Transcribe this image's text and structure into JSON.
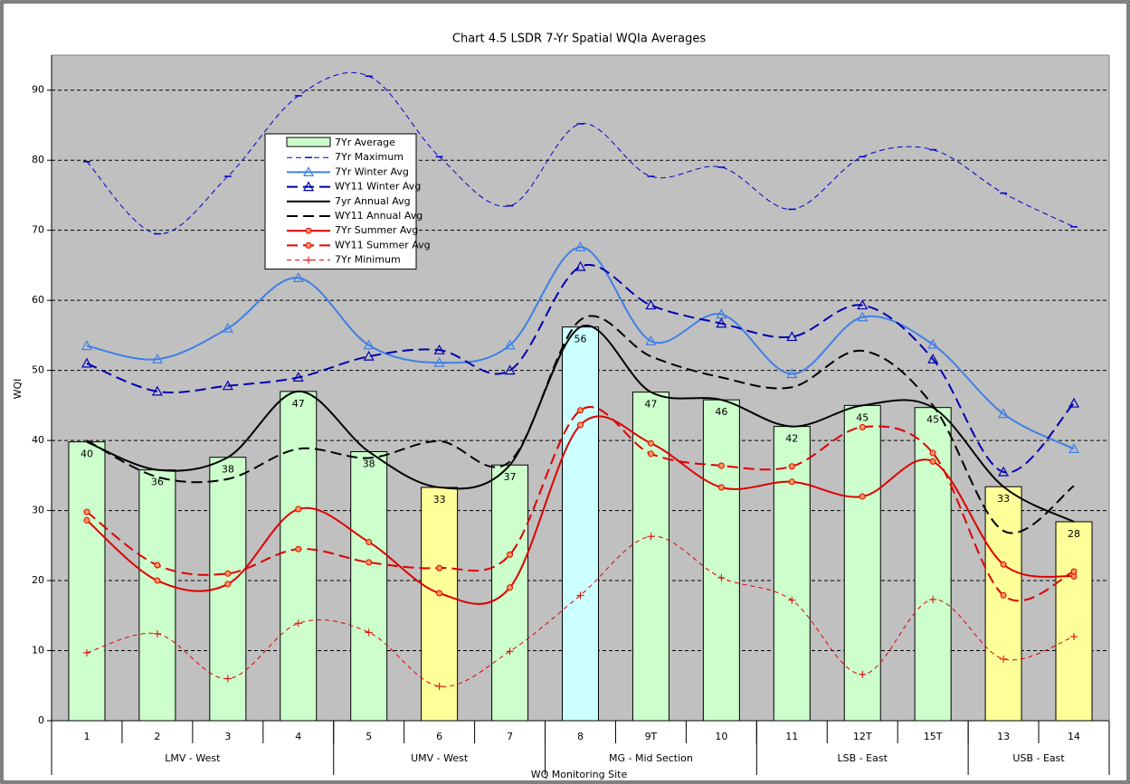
{
  "chart_data": {
    "type": "bar",
    "title": "Chart 4.5 LSDR 7-Yr Spatial WQIa Averages",
    "y_label": "WQI",
    "x_label": "WQ Monitoring Site",
    "categories": [
      "1",
      "2",
      "3",
      "4",
      "5",
      "6",
      "7",
      "8",
      "9T",
      "10",
      "11",
      "12T",
      "15T",
      "13",
      "14"
    ],
    "groups": [
      {
        "label": "LMV - West",
        "span": 4
      },
      {
        "label": "UMV - West",
        "span": 3
      },
      {
        "label": "MG - Mid Section",
        "span": 3
      },
      {
        "label": "LSB - East",
        "span": 3
      },
      {
        "label": "USB - East",
        "span": 2
      }
    ],
    "bars": {
      "name": "7Yr Average",
      "values": [
        39.8,
        35.8,
        37.6,
        47,
        38.4,
        33.3,
        36.5,
        56.2,
        46.9,
        45.8,
        42,
        45,
        44.7,
        33.4,
        28.4
      ],
      "value_labels": [
        "40",
        "36",
        "38",
        "47",
        "38",
        "33",
        "37",
        "56",
        "47",
        "46",
        "42",
        "45",
        "45",
        "33",
        "28"
      ],
      "colors": [
        "#ccffcc",
        "#ccffcc",
        "#ccffcc",
        "#ccffcc",
        "#ccffcc",
        "#ffff99",
        "#ccffcc",
        "#ccffff",
        "#ccffcc",
        "#ccffcc",
        "#ccffcc",
        "#ccffcc",
        "#ccffcc",
        "#ffff99",
        "#ffff99"
      ]
    },
    "series": [
      {
        "name": "7Yr Maximum",
        "color": "#0000cc",
        "dash": "6,4",
        "width": 1,
        "marker": "dash",
        "values": [
          79.8,
          69.5,
          77.7,
          89.2,
          92,
          80.5,
          73.5,
          85.2,
          77.7,
          79,
          73,
          80.5,
          81.5,
          75.3,
          70.5
        ]
      },
      {
        "name": "7Yr Winter Avg",
        "color": "#3f7fe6",
        "dash": "",
        "width": 2,
        "marker": "triangle",
        "values": [
          53.5,
          51.6,
          56,
          63.2,
          53.6,
          51.1,
          53.6,
          67.6,
          54.2,
          58,
          49.5,
          57.6,
          53.7,
          43.8,
          38.8
        ]
      },
      {
        "name": "WY11 Winter Avg",
        "color": "#0000b0",
        "dash": "12,6",
        "width": 2,
        "marker": "triangle",
        "values": [
          51,
          47,
          47.8,
          49,
          52,
          52.9,
          50,
          64.8,
          59.3,
          56.7,
          54.8,
          59.3,
          51.6,
          35.5,
          45.3
        ]
      },
      {
        "name": "7yr Annual Avg",
        "color": "#000000",
        "dash": "",
        "width": 2,
        "marker": "none",
        "values": [
          39.8,
          35.8,
          37.6,
          47,
          38.4,
          33.3,
          36.5,
          56.2,
          46.9,
          45.8,
          42,
          45,
          44.7,
          33.4,
          28.4
        ]
      },
      {
        "name": "WY11 Annual Avg",
        "color": "#000000",
        "dash": "12,6",
        "width": 2,
        "marker": "none",
        "values": [
          40,
          34.8,
          34.5,
          38.8,
          37.5,
          39.9,
          37,
          57.2,
          52,
          49,
          47.6,
          52.8,
          45,
          27.1,
          33.5
        ]
      },
      {
        "name": "7Yr Summer Avg",
        "color": "#dd0000",
        "dash": "",
        "width": 2,
        "marker": "circle",
        "values": [
          28.6,
          20,
          19.5,
          30.2,
          25.5,
          18.2,
          19,
          42.2,
          39.6,
          33.3,
          34.1,
          32,
          37,
          22.3,
          20.6
        ]
      },
      {
        "name": "WY11 Summer Avg",
        "color": "#dd0000",
        "dash": "12,6",
        "width": 2,
        "marker": "circle",
        "values": [
          29.8,
          22.2,
          21,
          24.5,
          22.6,
          21.8,
          23.7,
          44.3,
          38.1,
          36.4,
          36.3,
          41.9,
          38.2,
          17.9,
          21.3
        ]
      },
      {
        "name": "7Yr Minimum",
        "color": "#dd0000",
        "dash": "5,4",
        "width": 1,
        "marker": "plus",
        "values": [
          9.7,
          12.4,
          6,
          13.9,
          12.6,
          4.9,
          9.9,
          17.9,
          26.3,
          20.4,
          17.2,
          6.6,
          17.3,
          8.8,
          12
        ]
      }
    ],
    "ylim": [
      0,
      95
    ],
    "yticks": [
      0,
      10,
      20,
      30,
      40,
      50,
      60,
      70,
      80,
      90
    ],
    "grid": true
  }
}
